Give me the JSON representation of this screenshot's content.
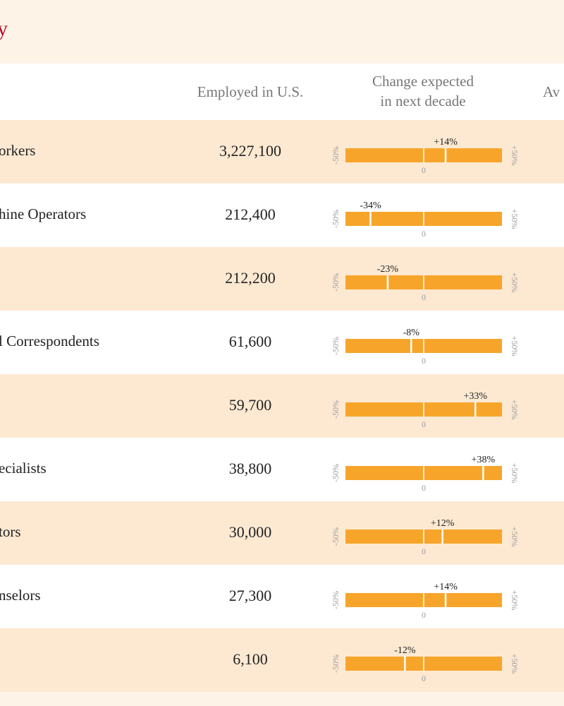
{
  "title": "y",
  "headers": {
    "employed": "Employed in U.S.",
    "change_line1": "Change expected",
    "change_line2": "in next decade",
    "average": "Av"
  },
  "axis_labels": {
    "min": "-50%",
    "max": "+50%",
    "zero": "0"
  },
  "colors": {
    "bar": "#f7a52a",
    "title": "#b5112e",
    "row_alt": "#fde9d2",
    "page": "#fdf3e7"
  },
  "rows": [
    {
      "occupation": "orkers",
      "employed": "3,227,100",
      "change_label": "+14%"
    },
    {
      "occupation": "hine Operators",
      "employed": "212,400",
      "change_label": "-34%"
    },
    {
      "occupation": "",
      "employed": "212,200",
      "change_label": "-23%"
    },
    {
      "occupation": "l Correspondents",
      "employed": "61,600",
      "change_label": "-8%"
    },
    {
      "occupation": "",
      "employed": "59,700",
      "change_label": "+33%"
    },
    {
      "occupation": "ecialists",
      "employed": "38,800",
      "change_label": "+38%"
    },
    {
      "occupation": "tors",
      "employed": "30,000",
      "change_label": "+12%"
    },
    {
      "occupation": "nselors",
      "employed": "27,300",
      "change_label": "+14%"
    },
    {
      "occupation": "",
      "employed": "6,100",
      "change_label": "-12%"
    }
  ],
  "chart_data": {
    "type": "bar",
    "xlim": [
      -50,
      50
    ],
    "categories": [
      "orkers",
      "hine Operators",
      "",
      "l Correspondents",
      "",
      "ecialists",
      "tors",
      "nselors",
      ""
    ],
    "values": [
      14,
      -34,
      -23,
      -8,
      33,
      38,
      12,
      14,
      -12
    ]
  }
}
